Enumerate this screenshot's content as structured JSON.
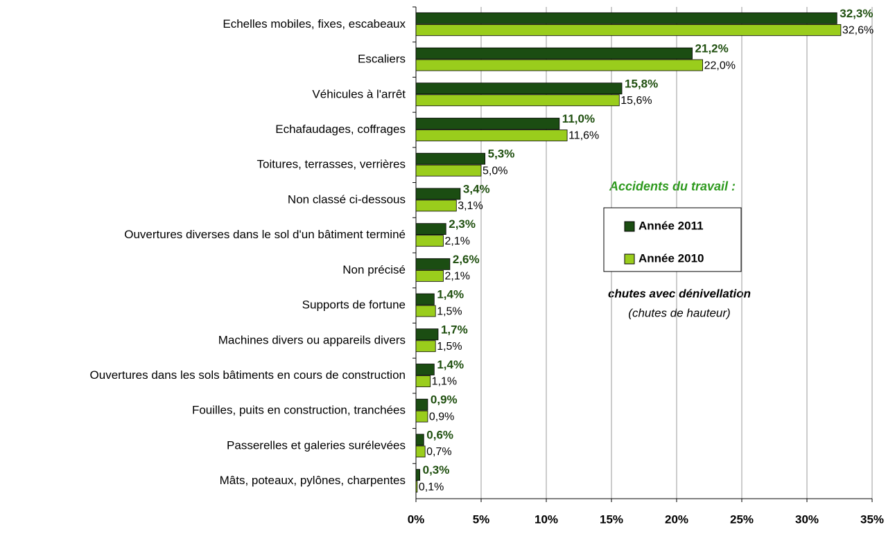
{
  "chart_data": {
    "type": "bar",
    "orientation": "horizontal",
    "categories": [
      "Echelles mobiles, fixes, escabeaux",
      "Escaliers",
      "Véhicules à l'arrêt",
      "Echafaudages, coffrages",
      "Toitures, terrasses, verrières",
      "Non classé ci-dessous",
      "Ouvertures diverses dans le sol d'un bâtiment terminé",
      "Non précisé",
      "Supports de fortune",
      "Machines divers ou appareils divers",
      "Ouvertures dans les sols bâtiments en cours de construction",
      "Fouilles, puits en construction, tranchées",
      "Passerelles et galeries surélevées",
      "Mâts, poteaux, pylônes, charpentes"
    ],
    "series": [
      {
        "name": "Année 2011",
        "color": "#1b4d12",
        "values": [
          32.3,
          21.2,
          15.8,
          11.0,
          5.3,
          3.4,
          2.3,
          2.6,
          1.4,
          1.7,
          1.4,
          0.9,
          0.6,
          0.3
        ],
        "value_labels": [
          "32,3%",
          "21,2%",
          "15,8%",
          "11,0%",
          "5,3%",
          "3,4%",
          "2,3%",
          "2,6%",
          "1,4%",
          "1,7%",
          "1,4%",
          "0,9%",
          "0,6%",
          "0,3%"
        ]
      },
      {
        "name": "Année 2010",
        "color": "#9acd1c",
        "values": [
          32.6,
          22.0,
          15.6,
          11.6,
          5.0,
          3.1,
          2.1,
          2.1,
          1.5,
          1.5,
          1.1,
          0.9,
          0.7,
          0.1
        ],
        "value_labels": [
          "32,6%",
          "22,0%",
          "15,6%",
          "11,6%",
          "5,0%",
          "3,1%",
          "2,1%",
          "2,1%",
          "1,5%",
          "1,5%",
          "1,1%",
          "0,9%",
          "0,7%",
          "0,1%"
        ]
      }
    ],
    "xlim": [
      0,
      35
    ],
    "xticks": [
      {
        "value": 0,
        "label": "0%"
      },
      {
        "value": 5,
        "label": "5%"
      },
      {
        "value": 10,
        "label": "10%"
      },
      {
        "value": 15,
        "label": "15%"
      },
      {
        "value": 20,
        "label": "20%"
      },
      {
        "value": 25,
        "label": "25%"
      },
      {
        "value": 30,
        "label": "30%"
      },
      {
        "value": 35,
        "label": "35%"
      }
    ],
    "grid": true,
    "annotations": [
      "Accidents du travail :",
      "chutes avec dénivellation",
      "(chutes de hauteur)"
    ]
  }
}
